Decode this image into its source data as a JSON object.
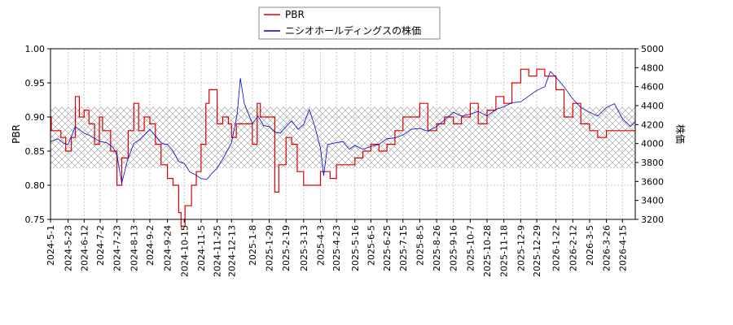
{
  "chart_data": {
    "type": "line",
    "legend_position": "top",
    "grid": true,
    "hatched_band": [
      0.825,
      0.915
    ],
    "ylabel_left": "PBR",
    "ylabel_right": "株価",
    "ylim_left": [
      0.75,
      1.0
    ],
    "ylim_right": [
      3200,
      5000
    ],
    "yticks_left": [
      "0.75",
      "0.80",
      "0.85",
      "0.90",
      "0.95",
      "1.00"
    ],
    "yticks_right": [
      "3200",
      "3400",
      "3600",
      "3800",
      "4000",
      "4200",
      "4400",
      "4600",
      "4800",
      "5000"
    ],
    "x_start": "2024-05-01",
    "x_end": "2026-05-01",
    "x_ticks": [
      "2024-5-1",
      "2024-5-23",
      "2024-6-12",
      "2024-7-2",
      "2024-7-23",
      "2024-8-13",
      "2024-9-2",
      "2024-9-24",
      "2024-10-15",
      "2024-11-5",
      "2024-11-25",
      "2024-12-13",
      "2025-1-8",
      "2025-1-29",
      "2025-2-19",
      "2025-3-13",
      "2025-4-3",
      "2025-4-23",
      "2025-5-16",
      "2025-6-5",
      "2025-6-25",
      "2025-7-15",
      "2025-8-5",
      "2025-8-26",
      "2025-9-16",
      "2025-10-7",
      "2025-10-28",
      "2025-11-18",
      "2025-12-9",
      "2025-12-29",
      "2026-1-22",
      "2026-2-12",
      "2026-3-5",
      "2026-3-26",
      "2026-4-15"
    ],
    "series": [
      {
        "name": "PBR",
        "color": "#dd0000",
        "axis": "left",
        "points": [
          [
            "2024-05-01",
            0.9
          ],
          [
            "2024-05-02",
            0.88
          ],
          [
            "2024-05-14",
            0.87
          ],
          [
            "2024-05-20",
            0.85
          ],
          [
            "2024-05-27",
            0.87
          ],
          [
            "2024-06-01",
            0.93
          ],
          [
            "2024-06-06",
            0.9
          ],
          [
            "2024-06-12",
            0.91
          ],
          [
            "2024-06-18",
            0.89
          ],
          [
            "2024-06-25",
            0.86
          ],
          [
            "2024-07-01",
            0.9
          ],
          [
            "2024-07-05",
            0.88
          ],
          [
            "2024-07-15",
            0.85
          ],
          [
            "2024-07-23",
            0.8
          ],
          [
            "2024-07-29",
            0.84
          ],
          [
            "2024-08-06",
            0.88
          ],
          [
            "2024-08-13",
            0.92
          ],
          [
            "2024-08-19",
            0.88
          ],
          [
            "2024-08-26",
            0.9
          ],
          [
            "2024-09-02",
            0.89
          ],
          [
            "2024-09-09",
            0.86
          ],
          [
            "2024-09-16",
            0.83
          ],
          [
            "2024-09-24",
            0.81
          ],
          [
            "2024-10-01",
            0.8
          ],
          [
            "2024-10-08",
            0.76
          ],
          [
            "2024-10-11",
            0.74
          ],
          [
            "2024-10-16",
            0.77
          ],
          [
            "2024-10-24",
            0.8
          ],
          [
            "2024-10-30",
            0.82
          ],
          [
            "2024-11-05",
            0.86
          ],
          [
            "2024-11-11",
            0.92
          ],
          [
            "2024-11-15",
            0.94
          ],
          [
            "2024-11-25",
            0.89
          ],
          [
            "2024-12-02",
            0.9
          ],
          [
            "2024-12-09",
            0.89
          ],
          [
            "2024-12-13",
            0.87
          ],
          [
            "2024-12-19",
            0.89
          ],
          [
            "2025-01-08",
            0.86
          ],
          [
            "2025-01-14",
            0.92
          ],
          [
            "2025-01-18",
            0.9
          ],
          [
            "2025-01-29",
            0.9
          ],
          [
            "2025-02-05",
            0.79
          ],
          [
            "2025-02-10",
            0.83
          ],
          [
            "2025-02-19",
            0.87
          ],
          [
            "2025-02-26",
            0.86
          ],
          [
            "2025-03-05",
            0.82
          ],
          [
            "2025-03-13",
            0.8
          ],
          [
            "2025-03-24",
            0.8
          ],
          [
            "2025-04-03",
            0.82
          ],
          [
            "2025-04-15",
            0.81
          ],
          [
            "2025-04-23",
            0.83
          ],
          [
            "2025-05-01",
            0.83
          ],
          [
            "2025-05-16",
            0.84
          ],
          [
            "2025-05-26",
            0.85
          ],
          [
            "2025-06-05",
            0.86
          ],
          [
            "2025-06-15",
            0.85
          ],
          [
            "2025-06-25",
            0.86
          ],
          [
            "2025-07-05",
            0.88
          ],
          [
            "2025-07-15",
            0.9
          ],
          [
            "2025-07-25",
            0.9
          ],
          [
            "2025-08-05",
            0.92
          ],
          [
            "2025-08-15",
            0.88
          ],
          [
            "2025-08-26",
            0.89
          ],
          [
            "2025-09-05",
            0.9
          ],
          [
            "2025-09-16",
            0.89
          ],
          [
            "2025-09-26",
            0.9
          ],
          [
            "2025-10-07",
            0.92
          ],
          [
            "2025-10-17",
            0.89
          ],
          [
            "2025-10-28",
            0.91
          ],
          [
            "2025-11-08",
            0.93
          ],
          [
            "2025-11-18",
            0.92
          ],
          [
            "2025-11-28",
            0.95
          ],
          [
            "2025-12-09",
            0.97
          ],
          [
            "2025-12-19",
            0.96
          ],
          [
            "2025-12-29",
            0.97
          ],
          [
            "2026-01-08",
            0.96
          ],
          [
            "2026-01-22",
            0.94
          ],
          [
            "2026-02-01",
            0.9
          ],
          [
            "2026-02-12",
            0.92
          ],
          [
            "2026-02-22",
            0.89
          ],
          [
            "2026-03-05",
            0.88
          ],
          [
            "2026-03-15",
            0.87
          ],
          [
            "2026-03-26",
            0.88
          ],
          [
            "2026-04-05",
            0.88
          ],
          [
            "2026-04-15",
            0.88
          ],
          [
            "2026-05-01",
            0.88
          ]
        ]
      },
      {
        "name": "ニシオホールディングスの株価",
        "color": "#0000cc",
        "axis": "right",
        "points": [
          [
            "2024-05-01",
            4020
          ],
          [
            "2024-05-10",
            4050
          ],
          [
            "2024-05-18",
            4000
          ],
          [
            "2024-05-23",
            3990
          ],
          [
            "2024-06-01",
            4180
          ],
          [
            "2024-06-12",
            4110
          ],
          [
            "2024-06-20",
            4080
          ],
          [
            "2024-07-02",
            4020
          ],
          [
            "2024-07-10",
            4010
          ],
          [
            "2024-07-18",
            3960
          ],
          [
            "2024-07-23",
            3880
          ],
          [
            "2024-07-29",
            3580
          ],
          [
            "2024-08-05",
            3820
          ],
          [
            "2024-08-13",
            4000
          ],
          [
            "2024-08-20",
            4040
          ],
          [
            "2024-09-02",
            4150
          ],
          [
            "2024-09-10",
            4070
          ],
          [
            "2024-09-17",
            4000
          ],
          [
            "2024-09-24",
            3990
          ],
          [
            "2024-10-01",
            3920
          ],
          [
            "2024-10-08",
            3810
          ],
          [
            "2024-10-15",
            3790
          ],
          [
            "2024-10-22",
            3700
          ],
          [
            "2024-10-29",
            3670
          ],
          [
            "2024-11-05",
            3630
          ],
          [
            "2024-11-12",
            3620
          ],
          [
            "2024-11-19",
            3690
          ],
          [
            "2024-11-25",
            3740
          ],
          [
            "2024-12-03",
            3850
          ],
          [
            "2024-12-13",
            4010
          ],
          [
            "2024-12-20",
            4310
          ],
          [
            "2024-12-24",
            4690
          ],
          [
            "2024-12-29",
            4420
          ],
          [
            "2025-01-08",
            4210
          ],
          [
            "2025-01-15",
            4290
          ],
          [
            "2025-01-22",
            4190
          ],
          [
            "2025-01-29",
            4180
          ],
          [
            "2025-02-05",
            4120
          ],
          [
            "2025-02-12",
            4110
          ],
          [
            "2025-02-19",
            4180
          ],
          [
            "2025-02-26",
            4240
          ],
          [
            "2025-03-06",
            4150
          ],
          [
            "2025-03-13",
            4200
          ],
          [
            "2025-03-20",
            4360
          ],
          [
            "2025-03-27",
            4180
          ],
          [
            "2025-04-03",
            3950
          ],
          [
            "2025-04-07",
            3660
          ],
          [
            "2025-04-12",
            3990
          ],
          [
            "2025-04-23",
            4010
          ],
          [
            "2025-05-01",
            4020
          ],
          [
            "2025-05-09",
            3940
          ],
          [
            "2025-05-16",
            3980
          ],
          [
            "2025-05-26",
            3940
          ],
          [
            "2025-06-05",
            3970
          ],
          [
            "2025-06-15",
            3990
          ],
          [
            "2025-06-25",
            4050
          ],
          [
            "2025-07-05",
            4060
          ],
          [
            "2025-07-15",
            4090
          ],
          [
            "2025-07-25",
            4150
          ],
          [
            "2025-08-05",
            4160
          ],
          [
            "2025-08-15",
            4130
          ],
          [
            "2025-08-26",
            4180
          ],
          [
            "2025-09-05",
            4250
          ],
          [
            "2025-09-16",
            4330
          ],
          [
            "2025-09-26",
            4290
          ],
          [
            "2025-10-07",
            4310
          ],
          [
            "2025-10-17",
            4340
          ],
          [
            "2025-10-28",
            4290
          ],
          [
            "2025-11-08",
            4360
          ],
          [
            "2025-11-18",
            4390
          ],
          [
            "2025-11-28",
            4430
          ],
          [
            "2025-12-09",
            4440
          ],
          [
            "2025-12-19",
            4500
          ],
          [
            "2025-12-29",
            4560
          ],
          [
            "2026-01-08",
            4600
          ],
          [
            "2026-01-15",
            4760
          ],
          [
            "2026-01-22",
            4700
          ],
          [
            "2026-02-01",
            4600
          ],
          [
            "2026-02-12",
            4470
          ],
          [
            "2026-02-22",
            4380
          ],
          [
            "2026-03-05",
            4330
          ],
          [
            "2026-03-15",
            4290
          ],
          [
            "2026-03-26",
            4380
          ],
          [
            "2026-04-05",
            4420
          ],
          [
            "2026-04-15",
            4260
          ],
          [
            "2026-04-25",
            4180
          ],
          [
            "2026-05-01",
            4230
          ]
        ]
      }
    ]
  }
}
